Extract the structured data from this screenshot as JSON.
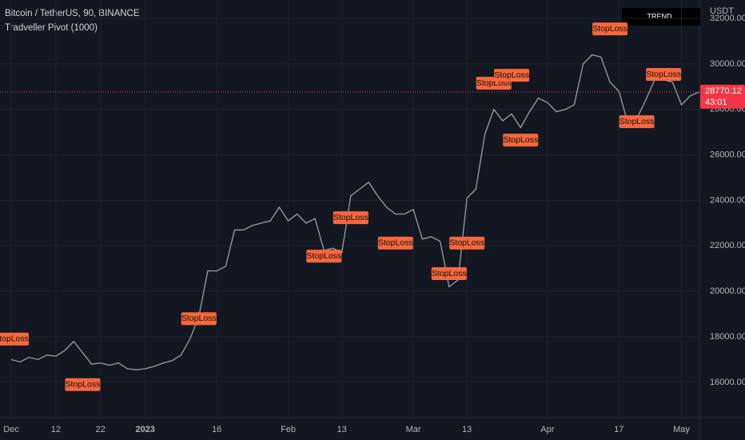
{
  "chart_data": {
    "type": "line",
    "title": "Bitcoin / TetherUS, 90, BINANCE",
    "subtitle": "Tradveller Pivot (1000)",
    "y_axis_label": "USDT",
    "indicator_label": "TREND",
    "categories": [
      "Dec",
      null,
      null,
      null,
      null,
      "12",
      null,
      null,
      null,
      null,
      "22",
      null,
      null,
      null,
      null,
      "2023",
      null,
      null,
      null,
      null,
      null,
      null,
      null,
      "16",
      null,
      null,
      null,
      null,
      null,
      null,
      null,
      "Feb",
      null,
      null,
      null,
      null,
      null,
      "13",
      null,
      null,
      null,
      null,
      null,
      null,
      null,
      "Mar",
      null,
      null,
      null,
      null,
      null,
      "13",
      null,
      null,
      null,
      null,
      null,
      null,
      null,
      null,
      "Apr",
      null,
      null,
      null,
      null,
      null,
      null,
      null,
      "17",
      null,
      null,
      null,
      null,
      null,
      null,
      "May",
      null,
      null
    ],
    "series": [
      {
        "name": "BTCUSDT",
        "color": "#9aa0ab",
        "values": [
          17000,
          16900,
          17100,
          17000,
          17200,
          17150,
          17400,
          17800,
          17300,
          16800,
          16850,
          16750,
          16850,
          16600,
          16550,
          16600,
          16700,
          16850,
          16950,
          17200,
          17900,
          18900,
          20900,
          20900,
          21100,
          22700,
          22700,
          22900,
          23000,
          23100,
          23700,
          23100,
          23400,
          23000,
          23200,
          21800,
          21900,
          21700,
          24200,
          24500,
          24800,
          24200,
          23700,
          23400,
          23400,
          23600,
          22300,
          22400,
          22200,
          20200,
          20500,
          24100,
          24500,
          26900,
          28000,
          27500,
          27800,
          27200,
          27900,
          28500,
          28300,
          27900,
          28000,
          28200,
          30000,
          30400,
          30300,
          29200,
          28800,
          27400,
          27600,
          28400,
          29300,
          29300,
          29200,
          28200,
          28600,
          28770
        ]
      }
    ],
    "ylim": [
      14520,
      32810
    ],
    "yticks": [
      {
        "value": 16000,
        "label": "16000.00"
      },
      {
        "value": 18000,
        "label": "18000.00"
      },
      {
        "value": 20000,
        "label": "20000.00"
      },
      {
        "value": 22000,
        "label": "22000.00"
      },
      {
        "value": 24000,
        "label": "24000.00"
      },
      {
        "value": 26000,
        "label": "26000.00"
      },
      {
        "value": 28000,
        "label": "28000.00"
      },
      {
        "value": 30000,
        "label": "30000.00"
      },
      {
        "value": 32000,
        "label": "32000.00"
      }
    ],
    "grid": true,
    "last_price": 28770.12,
    "countdown": "43:01",
    "annotations": [
      {
        "text": "StopLoss",
        "x": 0,
        "y": 17900
      },
      {
        "text": "StopLoss",
        "x": 8,
        "y": 15900
      },
      {
        "text": "StopLoss",
        "x": 21,
        "y": 18800
      },
      {
        "text": "StopLoss",
        "x": 35,
        "y": 21550
      },
      {
        "text": "StopLoss",
        "x": 38,
        "y": 23240
      },
      {
        "text": "StopLoss",
        "x": 43,
        "y": 22120
      },
      {
        "text": "StopLoss",
        "x": 49,
        "y": 20780
      },
      {
        "text": "StopLoss",
        "x": 51,
        "y": 22120
      },
      {
        "text": "StopLoss",
        "x": 54,
        "y": 29150
      },
      {
        "text": "StopLoss",
        "x": 56,
        "y": 29500
      },
      {
        "text": "StopLoss",
        "x": 57,
        "y": 26650
      },
      {
        "text": "StopLoss",
        "x": 67,
        "y": 31540
      },
      {
        "text": "StopLoss",
        "x": 70,
        "y": 27460
      },
      {
        "text": "StopLoss",
        "x": 73,
        "y": 29540
      }
    ]
  }
}
